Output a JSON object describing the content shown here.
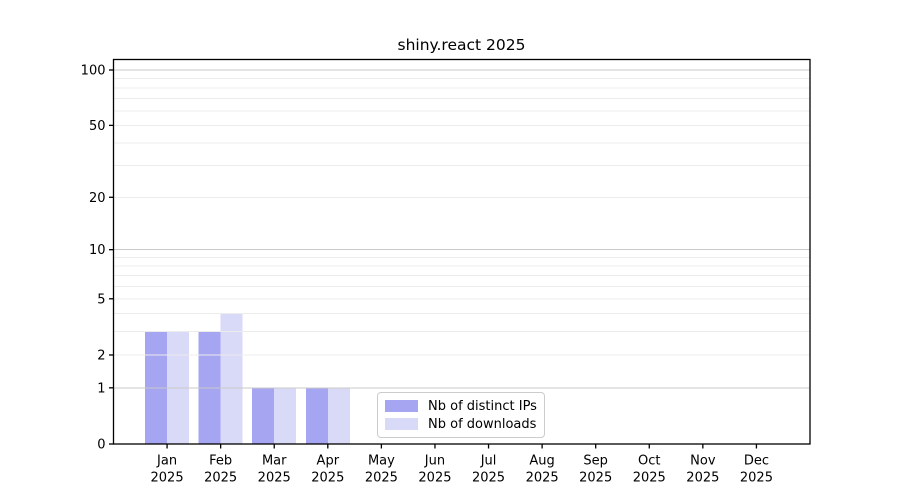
{
  "chart_data": {
    "type": "bar",
    "title": "shiny.react 2025",
    "categories": [
      "Jan",
      "Feb",
      "Mar",
      "Apr",
      "May",
      "Jun",
      "Jul",
      "Aug",
      "Sep",
      "Oct",
      "Nov",
      "Dec"
    ],
    "tick_year": "2025",
    "series": [
      {
        "name": "Nb of distinct IPs",
        "color": "#a5a5f2",
        "values": [
          3,
          3,
          1,
          1,
          0,
          0,
          0,
          0,
          0,
          0,
          0,
          0
        ]
      },
      {
        "name": "Nb of downloads",
        "color": "#d9d9f8",
        "values": [
          3,
          4,
          1,
          1,
          0,
          0,
          0,
          0,
          0,
          0,
          0,
          0
        ]
      }
    ],
    "xlabel": "",
    "ylabel": "",
    "scale": "log1p",
    "ylim": [
      0,
      100
    ],
    "yticks": [
      0,
      1,
      2,
      5,
      10,
      20,
      50,
      100
    ],
    "minor_grid_values": [
      2,
      3,
      4,
      5,
      6,
      7,
      8,
      9,
      20,
      30,
      40,
      50,
      60,
      70,
      80,
      90
    ],
    "decade_grid_values": [
      1,
      10,
      100
    ],
    "grid": true,
    "legend_position": "lower center",
    "colors": {
      "grid_minor": "#ececec",
      "grid_decade": "#c9c9c9",
      "spine": "#000000",
      "text": "#000000",
      "background": "#ffffff"
    }
  }
}
